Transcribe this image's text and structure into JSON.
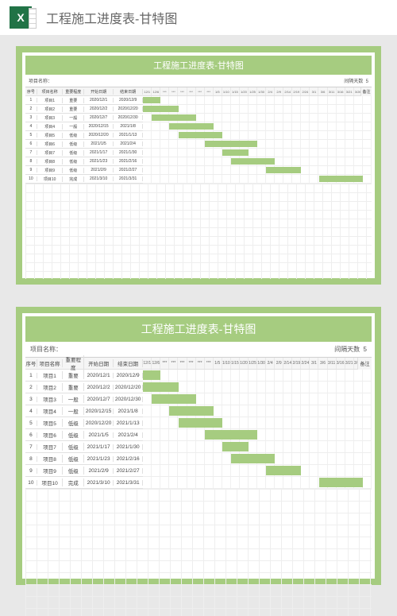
{
  "header": {
    "app_icon": "excel-icon",
    "title": "工程施工进度表-甘特图"
  },
  "gantt": {
    "title": "工程施工进度表-甘特图",
    "project_name_label": "项目名称：",
    "interval_label": "间隔天数",
    "interval_value": "5",
    "columns": {
      "idx": "序号",
      "name": "项目名称",
      "priority": "重要程度",
      "start": "开始日期",
      "end": "结束日期",
      "remark": "备注"
    },
    "timeline_ticks": [
      "12/1",
      "12/6",
      "***",
      "***",
      "***",
      "***",
      "***",
      "***",
      "1/5",
      "1/10",
      "1/15",
      "1/20",
      "1/25",
      "1/30",
      "2/4",
      "2/9",
      "2/14",
      "2/19",
      "2/24",
      "3/1",
      "3/6",
      "3/11",
      "3/16",
      "3/21",
      "3/26",
      "3/31"
    ],
    "tick_count": 26,
    "rows": [
      {
        "idx": "1",
        "name": "项目1",
        "pri": "重要",
        "sd": "2020/12/1",
        "ed": "2020/12/9",
        "bar_start": 0,
        "bar_span": 2
      },
      {
        "idx": "2",
        "name": "项目2",
        "pri": "重要",
        "sd": "2020/12/2",
        "ed": "2020/12/20",
        "bar_start": 0,
        "bar_span": 4
      },
      {
        "idx": "3",
        "name": "项目3",
        "pri": "一般",
        "sd": "2020/12/7",
        "ed": "2020/12/30",
        "bar_start": 1,
        "bar_span": 5
      },
      {
        "idx": "4",
        "name": "项目4",
        "pri": "一般",
        "sd": "2020/12/15",
        "ed": "2021/1/8",
        "bar_start": 3,
        "bar_span": 5
      },
      {
        "idx": "5",
        "name": "项目5",
        "pri": "低级",
        "sd": "2020/12/20",
        "ed": "2021/1/13",
        "bar_start": 4,
        "bar_span": 5
      },
      {
        "idx": "6",
        "name": "项目6",
        "pri": "低级",
        "sd": "2021/1/5",
        "ed": "2021/2/4",
        "bar_start": 7,
        "bar_span": 6
      },
      {
        "idx": "7",
        "name": "项目7",
        "pri": "低级",
        "sd": "2021/1/17",
        "ed": "2021/1/30",
        "bar_start": 9,
        "bar_span": 3
      },
      {
        "idx": "8",
        "name": "项目8",
        "pri": "低级",
        "sd": "2021/1/23",
        "ed": "2021/2/16",
        "bar_start": 10,
        "bar_span": 5
      },
      {
        "idx": "9",
        "name": "项目9",
        "pri": "低级",
        "sd": "2021/2/9",
        "ed": "2021/2/27",
        "bar_start": 14,
        "bar_span": 4
      },
      {
        "idx": "10",
        "name": "项目10",
        "pri": "完成",
        "sd": "2021/3/10",
        "ed": "2021/3/31",
        "bar_start": 20,
        "bar_span": 5
      }
    ],
    "colors": {
      "accent": "#a6cc80",
      "border": "#e0e0e0",
      "bg": "#ffffff",
      "page_bg": "#e8e8e8",
      "text": "#555555"
    },
    "font_family": "Microsoft YaHei",
    "title_fontsize_pt": 14
  }
}
